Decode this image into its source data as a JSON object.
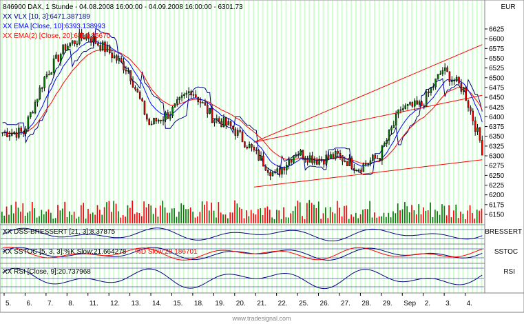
{
  "header": {
    "symbol_line": "846900  DAX, 1 Stunde - 04.08.2008 16:00:00 - 04.09.2008 16:00:00 - 6301.73",
    "currency": "EUR"
  },
  "legend_main": [
    {
      "text": "XX VLX [10, 3]:6471.387189",
      "color": "#000080"
    },
    {
      "text": "XX EMA [Close, 10]:6393.138993",
      "color": "#0000ff"
    },
    {
      "text": "XX EMA(2) [Close, 20]:6419.85670",
      "color": "#ff0000"
    }
  ],
  "panels": {
    "dss": {
      "label": "XX DSS-BRESSERT [21, 3]:8.37875",
      "right_label": "BRESSERT"
    },
    "sstoc": {
      "label_k": "XX SSTOC [5, 3, 3]:%K Slow:21.664278",
      "label_d": "%D Slow:28.186701",
      "right_label": "SSTOC"
    },
    "rsi": {
      "label": "XX RSI [Close, 9]:20.737968",
      "right_label": "RSI"
    }
  },
  "watermark": "www.tradesignal.com",
  "colors": {
    "up": "#008000",
    "down": "#ff0000",
    "wick": "#000000",
    "ema10": "#0000ff",
    "ema20": "#ff0000",
    "vlx": "#000080",
    "band": "#ccffcc",
    "trend": "#ff0000"
  },
  "chart_data": {
    "type": "candlestick",
    "title": "846900  DAX, 1 Stunde - 04.08.2008 16:00:00 - 04.09.2008 16:00:00 - 6301.73",
    "x_labels": [
      "5.",
      "6.",
      "7.",
      "8.",
      "11.",
      "12.",
      "13.",
      "14.",
      "15.",
      "18.",
      "19.",
      "20.",
      "21.",
      "22.",
      "25.",
      "26.",
      "27.",
      "28.",
      "29.",
      "Sep",
      "2.",
      "3.",
      "4."
    ],
    "y_ticks": [
      6625,
      6600,
      6575,
      6550,
      6525,
      6500,
      6475,
      6450,
      6425,
      6400,
      6375,
      6350,
      6325,
      6300,
      6275,
      6250,
      6225,
      6200,
      6175,
      6150
    ],
    "ylim": [
      6140,
      6640
    ],
    "last_close": 6301.73,
    "daily_closes": [
      6360,
      6500,
      6580,
      6610,
      6570,
      6520,
      6380,
      6410,
      6470,
      6400,
      6370,
      6310,
      6250,
      6310,
      6290,
      6300,
      6270,
      6300,
      6420,
      6430,
      6520,
      6470,
      6302
    ],
    "indicators": {
      "vlx": {
        "name": "VLX [10, 3]",
        "value": 6471.387189
      },
      "ema10": {
        "name": "EMA [Close, 10]",
        "value": 6393.138993
      },
      "ema20": {
        "name": "EMA(2) [Close, 20]",
        "value": 6419.8567
      },
      "dss": {
        "name": "DSS-BRESSERT [21, 3]",
        "value": 8.37875
      },
      "sstoc_k": {
        "name": "%K Slow",
        "value": 21.664278
      },
      "sstoc_d": {
        "name": "%D Slow",
        "value": 28.186701
      },
      "rsi": {
        "name": "RSI [Close, 9]",
        "value": 20.737968
      }
    }
  }
}
